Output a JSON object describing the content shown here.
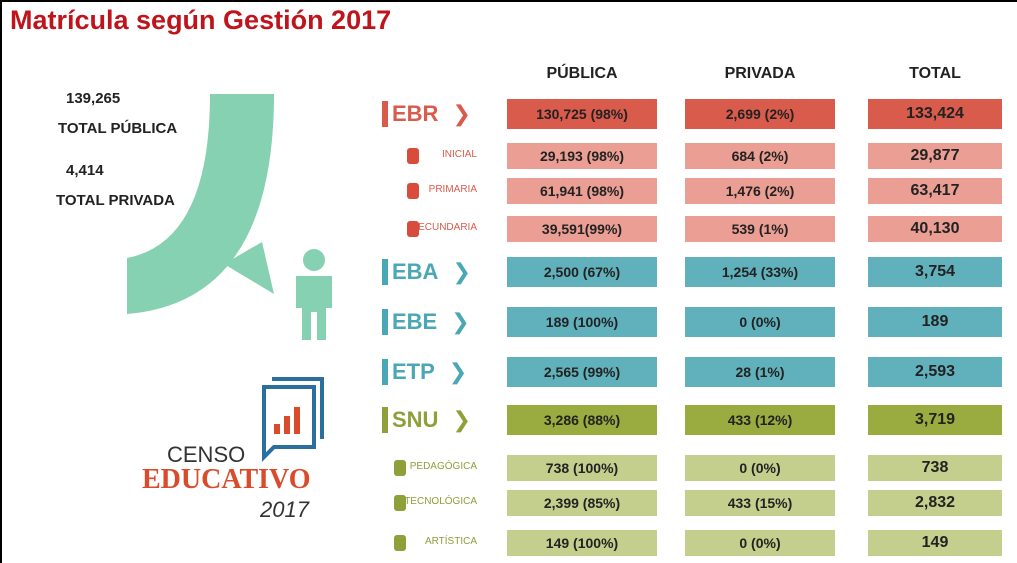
{
  "title": "Matrícula según Gestión 2017",
  "summary": [
    {
      "value": "139,265",
      "label": "TOTAL PÚBLICA"
    },
    {
      "value": "4,414",
      "label": "TOTAL PRIVADA"
    }
  ],
  "logo": {
    "line1": "CENSO",
    "line2": "EDUCATIVO",
    "line3": "2017"
  },
  "table": {
    "headers": [
      "PÚBLICA",
      "PRIVADA",
      "TOTAL"
    ],
    "rows": [
      [
        "EBR",
        "130,725 (98%)",
        "2,699 (2%)",
        "133,424"
      ],
      [
        "INICIAL",
        "29,193 (98%)",
        "684 (2%)",
        "29,877"
      ],
      [
        "PRIMARIA",
        "61,941 (98%)",
        "1,476 (2%)",
        "63,417"
      ],
      [
        "SECUNDARIA",
        "39,591(99%)",
        "539 (1%)",
        "40,130"
      ],
      [
        "EBA",
        "2,500 (67%)",
        "1,254 (33%)",
        "3,754"
      ],
      [
        "EBE",
        "189 (100%)",
        "0 (0%)",
        "189"
      ],
      [
        "ETP",
        "2,565 (99%)",
        "28 (1%)",
        "2,593"
      ],
      [
        "SNU",
        "3,286 (88%)",
        "433 (12%)",
        "3,719"
      ],
      [
        "PEDAGÓGICA",
        "738 (100%)",
        "0 (0%)",
        "738"
      ],
      [
        "TECNOLÓGICA",
        "2,399 (85%)",
        "433 (15%)",
        "2,832"
      ],
      [
        "ARTÍSTICA",
        "149 (100%)",
        "0 (0%)",
        "149"
      ]
    ]
  }
}
